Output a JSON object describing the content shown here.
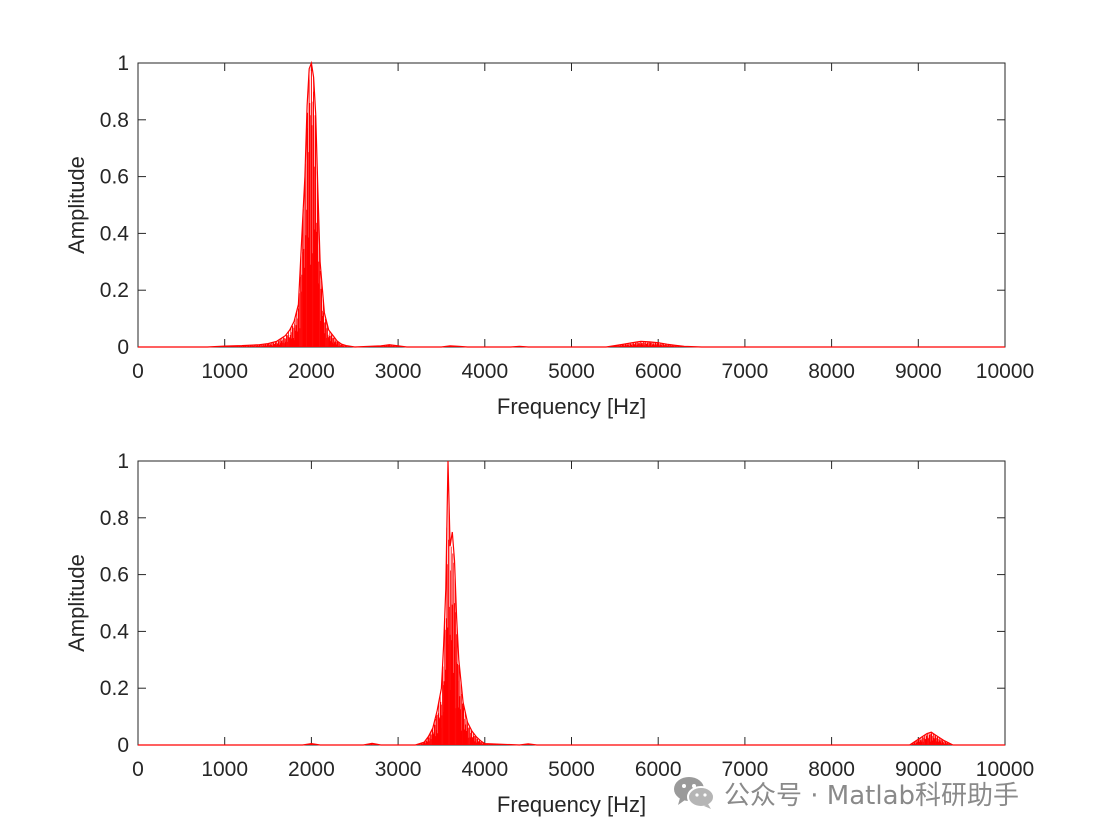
{
  "chart_data": [
    {
      "type": "line",
      "xlabel": "Frequency [Hz]",
      "ylabel": "Amplitude",
      "xlim": [
        0,
        10000
      ],
      "ylim": [
        0,
        1
      ],
      "xticks": [
        "0",
        "1000",
        "2000",
        "3000",
        "4000",
        "5000",
        "6000",
        "7000",
        "8000",
        "9000",
        "10000"
      ],
      "yticks": [
        "0",
        "0.2",
        "0.4",
        "0.6",
        "0.8",
        "1"
      ],
      "grid": false,
      "color": "#ff0000",
      "series": [
        {
          "x": [
            0,
            800,
            1000,
            1200,
            1400,
            1500,
            1600,
            1700,
            1750,
            1800,
            1850,
            1900,
            1925,
            1950,
            1975,
            2000,
            2025,
            2050,
            2075,
            2100,
            2150,
            2200,
            2250,
            2300,
            2350,
            2400,
            2500,
            2800,
            2900,
            3000,
            3100,
            3500,
            3600,
            3700,
            3800,
            4300,
            4400,
            4500,
            5400,
            5500,
            5600,
            5700,
            5800,
            5900,
            6000,
            6100,
            6200,
            6300,
            6500,
            10000
          ],
          "y": [
            0,
            0,
            0.003,
            0.005,
            0.008,
            0.012,
            0.02,
            0.04,
            0.06,
            0.09,
            0.15,
            0.45,
            0.6,
            0.85,
            0.98,
            1.0,
            0.95,
            0.82,
            0.55,
            0.3,
            0.12,
            0.06,
            0.04,
            0.02,
            0.01,
            0.005,
            0,
            0.004,
            0.008,
            0.004,
            0,
            0,
            0.004,
            0.002,
            0,
            0,
            0.002,
            0,
            0,
            0.005,
            0.01,
            0.015,
            0.02,
            0.018,
            0.015,
            0.01,
            0.006,
            0.002,
            0,
            0
          ]
        }
      ]
    },
    {
      "type": "line",
      "xlabel": "Frequency [Hz]",
      "ylabel": "Amplitude",
      "xlim": [
        0,
        10000
      ],
      "ylim": [
        0,
        1
      ],
      "xticks": [
        "0",
        "1000",
        "2000",
        "3000",
        "4000",
        "5000",
        "6000",
        "7000",
        "8000",
        "9000",
        "10000"
      ],
      "yticks": [
        "0",
        "0.2",
        "0.4",
        "0.6",
        "0.8",
        "1"
      ],
      "grid": false,
      "color": "#ff0000",
      "series": [
        {
          "x": [
            0,
            1900,
            2000,
            2100,
            2600,
            2700,
            2800,
            3200,
            3300,
            3350,
            3400,
            3450,
            3500,
            3525,
            3550,
            3575,
            3600,
            3625,
            3650,
            3675,
            3700,
            3750,
            3800,
            3850,
            3900,
            3950,
            4000,
            4400,
            4500,
            4600,
            8900,
            9000,
            9100,
            9150,
            9200,
            9300,
            9400,
            10000
          ],
          "y": [
            0,
            0,
            0.005,
            0,
            0,
            0.006,
            0,
            0,
            0.01,
            0.03,
            0.06,
            0.12,
            0.2,
            0.35,
            0.55,
            1.0,
            0.7,
            0.75,
            0.65,
            0.45,
            0.3,
            0.15,
            0.08,
            0.05,
            0.03,
            0.015,
            0.005,
            0,
            0.004,
            0,
            0,
            0.02,
            0.04,
            0.045,
            0.035,
            0.015,
            0,
            0
          ]
        }
      ]
    }
  ],
  "watermark": {
    "text": "公众号 · Matlab科研助手",
    "icon": "wechat-icon"
  }
}
